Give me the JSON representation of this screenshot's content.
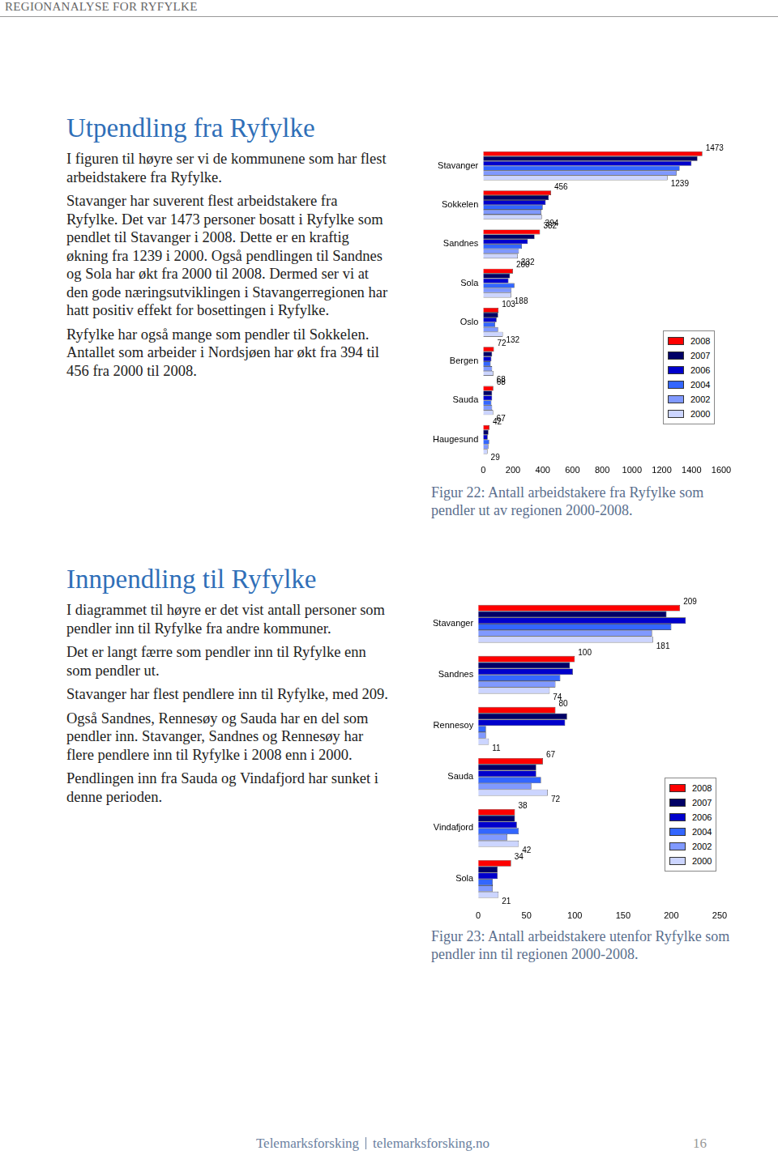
{
  "header": "REGIONANALYSE FOR RYFYLKE",
  "sections": [
    {
      "title": "Utpendling fra Ryfylke",
      "paragraphs": [
        "I figuren til høyre ser vi de kommunene som har flest arbeidstakere fra Ryfylke.",
        "Stavanger har suverent flest arbeidstakere fra Ryfylke. Det var 1473 personer bosatt i Ryfylke som pendlet til Stavanger i 2008. Dette er en kraftig økning fra 1239 i 2000. Også pendlingen til Sandnes og Sola har økt fra 2000 til 2008. Dermed ser vi at den gode næringsutviklingen i Stavangerregionen har hatt positiv effekt for bosettingen i Ryfylke.",
        "Ryfylke har også mange som pendler til Sokkelen. Antallet som arbeider i Nordsjøen har økt fra 394 til 456 fra 2000 til 2008."
      ],
      "caption": "Figur 22: Antall arbeidstakere fra Ryfylke som pendler ut av regionen 2000-2008."
    },
    {
      "title": "Innpendling til Ryfylke",
      "paragraphs": [
        "I diagrammet til høyre er det vist antall personer som pendler inn til Ryfylke fra andre kommuner.",
        "Det er langt færre som pendler inn til Ryfylke enn som pendler ut.",
        "Stavanger har flest pendlere inn til Ryfylke, med 209.",
        "Også Sandnes, Rennesøy og Sauda har en del som pendler inn. Stavanger, Sandnes og Rennesøy har flere pendlere inn til Ryfylke i 2008 enn i 2000.",
        "Pendlingen inn fra Sauda og Vindafjord har sunket i denne perioden."
      ],
      "caption": "Figur 23: Antall arbeidstakere utenfor Ryfylke som pendler inn til regionen 2000-2008."
    }
  ],
  "chart_data": [
    {
      "type": "bar",
      "orientation": "horizontal",
      "grid": false,
      "legend": "right",
      "categories": [
        "Stavanger",
        "Sokkelen",
        "Sandnes",
        "Sola",
        "Oslo",
        "Bergen",
        "Sauda",
        "Haugesund"
      ],
      "xlim": [
        0,
        1600
      ],
      "xticks": [
        0,
        200,
        400,
        600,
        800,
        1000,
        1200,
        1400,
        1600
      ],
      "series": [
        {
          "name": "2008",
          "color": "#ff0000",
          "data_labels": true,
          "values": [
            1473,
            456,
            382,
            200,
            103,
            72,
            68,
            42
          ]
        },
        {
          "name": "2007",
          "color": "#000066",
          "values": [
            1440,
            440,
            345,
            180,
            100,
            60,
            60,
            35
          ]
        },
        {
          "name": "2006",
          "color": "#0000cc",
          "values": [
            1400,
            420,
            300,
            170,
            90,
            55,
            60,
            30
          ]
        },
        {
          "name": "2004",
          "color": "#3366ff",
          "values": [
            1320,
            400,
            260,
            210,
            80,
            50,
            55,
            40
          ]
        },
        {
          "name": "2002",
          "color": "#8099ff",
          "values": [
            1300,
            390,
            240,
            190,
            100,
            60,
            60,
            35
          ]
        },
        {
          "name": "2000",
          "color": "#ccd5ff",
          "data_labels": true,
          "values": [
            1239,
            394,
            232,
            188,
            132,
            68,
            67,
            29
          ]
        }
      ]
    },
    {
      "type": "bar",
      "orientation": "horizontal",
      "grid": false,
      "legend": "right",
      "categories": [
        "Stavanger",
        "Sandnes",
        "Rennesoy",
        "Sauda",
        "Vindafjord",
        "Sola"
      ],
      "xlim": [
        0,
        250
      ],
      "xticks": [
        0,
        50,
        100,
        150,
        200,
        250
      ],
      "series": [
        {
          "name": "2008",
          "color": "#ff0000",
          "data_labels": true,
          "values": [
            209,
            100,
            80,
            67,
            38,
            34
          ]
        },
        {
          "name": "2007",
          "color": "#000066",
          "values": [
            195,
            95,
            92,
            60,
            38,
            20
          ]
        },
        {
          "name": "2006",
          "color": "#0000cc",
          "values": [
            215,
            98,
            90,
            60,
            40,
            20
          ]
        },
        {
          "name": "2004",
          "color": "#3366ff",
          "values": [
            200,
            85,
            8,
            65,
            42,
            15
          ]
        },
        {
          "name": "2002",
          "color": "#8099ff",
          "values": [
            180,
            80,
            8,
            55,
            30,
            15
          ]
        },
        {
          "name": "2000",
          "color": "#ccd5ff",
          "data_labels": true,
          "values": [
            181,
            74,
            11,
            72,
            42,
            21
          ]
        }
      ]
    }
  ],
  "footer": {
    "left": "Telemarksforsking",
    "right": "telemarksforsking.no",
    "page": 16
  }
}
